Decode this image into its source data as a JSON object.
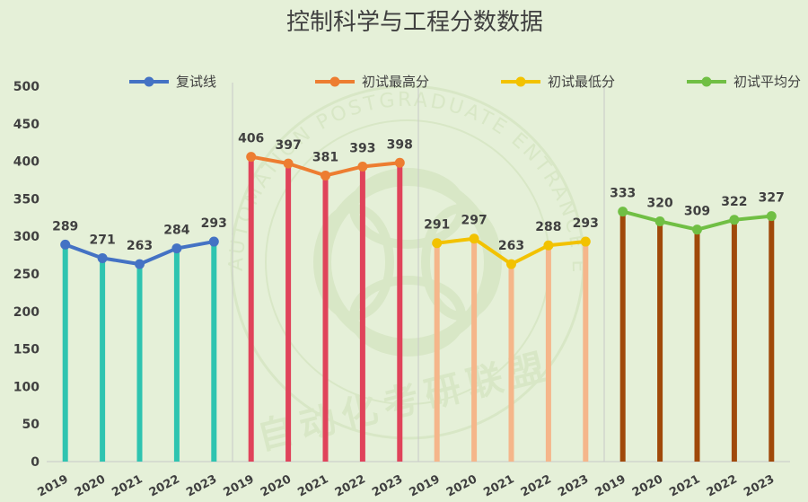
{
  "chart_data": {
    "type": "line",
    "title": "控制科学与工程分数数据",
    "ylim": [
      0,
      500
    ],
    "yticks": [
      0,
      50,
      100,
      150,
      200,
      250,
      300,
      350,
      400,
      450,
      500
    ],
    "grid": false,
    "legend_position": "top",
    "watermark": [
      "AUTOMATION POSTGRADUATE ENTRANCE EXAMINATION ALLIANCE",
      "自动化考研联盟"
    ],
    "groups": [
      {
        "name": "复试线",
        "color": "#4472c4",
        "stem_color": "#2ec4b0",
        "x": [
          "2019",
          "2020",
          "2021",
          "2022",
          "2023"
        ],
        "values": [
          289,
          271,
          263,
          284,
          293
        ]
      },
      {
        "name": "初试最高分",
        "color": "#ed7d31",
        "stem_color": "#e0435a",
        "x": [
          "2019",
          "2020",
          "2021",
          "2022",
          "2023"
        ],
        "values": [
          406,
          397,
          381,
          393,
          398
        ]
      },
      {
        "name": "初试最低分",
        "color": "#f2c200",
        "stem_color": "#f5b68a",
        "x": [
          "2019",
          "2020",
          "2021",
          "2022",
          "2023"
        ],
        "values": [
          291,
          297,
          263,
          288,
          293
        ]
      },
      {
        "name": "初试平均分",
        "color": "#70bf44",
        "stem_color": "#a0490a",
        "x": [
          "2019",
          "2020",
          "2021",
          "2022",
          "2023"
        ],
        "values": [
          333,
          320,
          309,
          322,
          327
        ]
      }
    ]
  }
}
